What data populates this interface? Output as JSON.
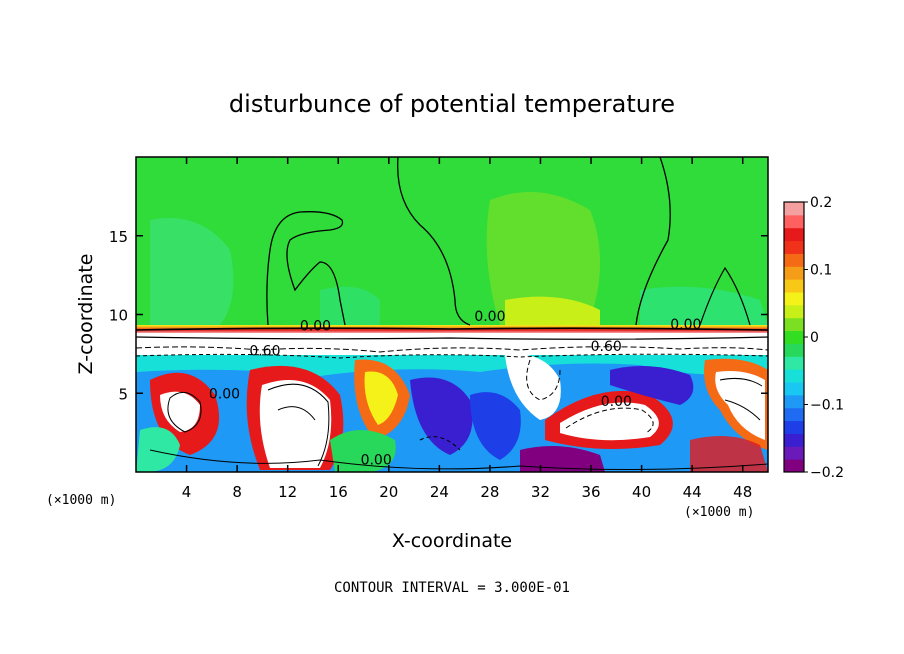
{
  "chart_data": {
    "type": "heatmap",
    "title": "disturbunce of potential temperature",
    "xlabel": "X-coordinate",
    "ylabel": "Z-coordinate",
    "x_unit": "(×1000 m)",
    "x_unit_right": "(×1000 m)",
    "xlim": [
      0,
      50
    ],
    "ylim": [
      0,
      20
    ],
    "x_ticks": [
      4,
      8,
      12,
      16,
      20,
      24,
      28,
      32,
      36,
      40,
      44,
      48
    ],
    "y_ticks": [
      5,
      10,
      15
    ],
    "colorbar": {
      "range": [
        -0.2,
        0.2
      ],
      "tick_values": [
        0.2,
        0.1,
        0,
        -0.1,
        -0.2
      ],
      "tick_labels": [
        "0.2",
        "0.1",
        "0",
        "−0.1",
        "−0.2"
      ],
      "colors": [
        "#800080",
        "#6a1ab8",
        "#3a1fd0",
        "#1e3ee8",
        "#1f6cf2",
        "#1e99f5",
        "#18c8f2",
        "#17e0d8",
        "#2ee8a4",
        "#27d85a",
        "#33dd22",
        "#7ae021",
        "#c8f018",
        "#f5f21a",
        "#f8c816",
        "#f59d18",
        "#f56a14",
        "#f0321a",
        "#e61a1a",
        "#ff6060",
        "#f5a0a0"
      ]
    },
    "contour_labels": [
      {
        "text": "0.00",
        "x": 14.2,
        "z": 9.3
      },
      {
        "text": "0.00",
        "x": 28.0,
        "z": 9.9
      },
      {
        "text": "0.00",
        "x": 43.5,
        "z": 9.4
      },
      {
        "text": "0.60",
        "x": 10.2,
        "z": 7.7
      },
      {
        "text": "0.60",
        "x": 37.2,
        "z": 8.0
      },
      {
        "text": "0.00",
        "x": 7.0,
        "z": 5.0
      },
      {
        "text": "0.00",
        "x": 38.0,
        "z": 4.5
      },
      {
        "text": "0.00",
        "x": 19.0,
        "z": 0.8
      }
    ],
    "annotation": "CONTOUR INTERVAL = 3.000E-01"
  }
}
